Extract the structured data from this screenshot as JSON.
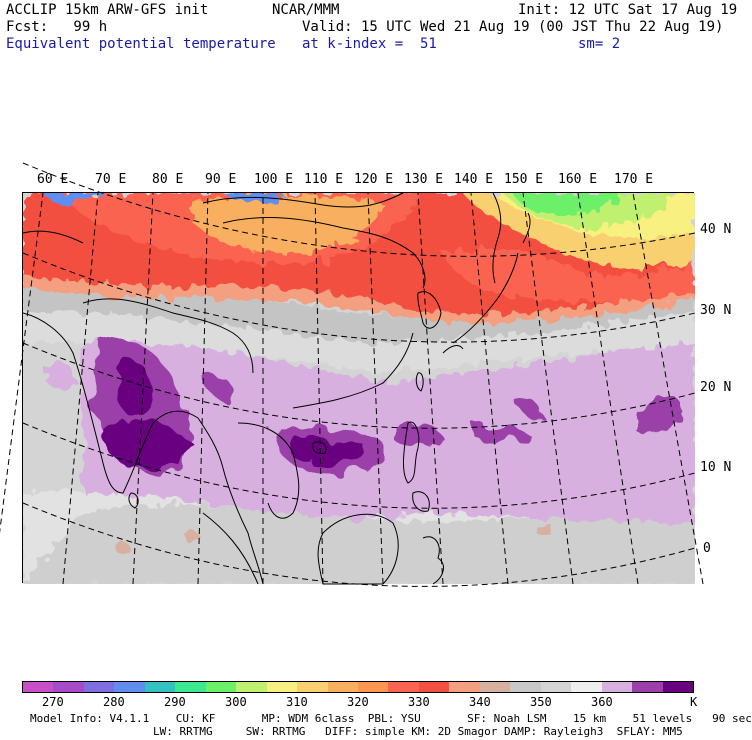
{
  "header": {
    "left_line1": "ACCLIP 15km ARW-GFS init",
    "left_line2": "Fcst:   99 h",
    "left_line3": "Equivalent potential temperature",
    "center_line1": "NCAR/MMM",
    "center_line2": "Valid: 15 UTC Wed 21 Aug 19 (00 JST Thu 22 Aug 19)",
    "center_line3": "at k-index =  51",
    "right_line1": "Init: 12 UTC Sat 17 Aug 19",
    "right_line3": "sm= 2"
  },
  "map": {
    "lon_labels": [
      "60 E",
      "70 E",
      "80 E",
      "90 E",
      "100 E",
      "110 E",
      "120 E",
      "130 E",
      "140 E",
      "150 E",
      "160 E",
      "170 E"
    ],
    "lat_labels": [
      "40 N",
      "30 N",
      "20 N",
      "10 N",
      "0"
    ]
  },
  "colorbar": {
    "colors": [
      "#c84fc8",
      "#a64ac8",
      "#7e6ee0",
      "#5f8ef0",
      "#33c2c2",
      "#3ce890",
      "#6cf06a",
      "#c0f070",
      "#f8f080",
      "#f8d070",
      "#f8b060",
      "#fa9650",
      "#fa6450",
      "#f25040",
      "#f4a080",
      "#d8b0a0",
      "#c8c8c8",
      "#d4d4d4",
      "#eeeeee",
      "#d8b0e0",
      "#9a40a8",
      "#680080"
    ],
    "labels": [
      "270",
      "280",
      "290",
      "300",
      "310",
      "320",
      "330",
      "340",
      "350",
      "360",
      "K"
    ]
  },
  "model_info": {
    "line1": "Model Info: V4.1.1    CU: KF       MP: WDM 6class  PBL: YSU       SF: Noah LSM    15 km    51 levels   90 sec",
    "line2": "LW: RRTMG     SW: RRTMG   DIFF: simple KM: 2D Smagor DAMP: Rayleigh3  SFLAY: MM5"
  }
}
